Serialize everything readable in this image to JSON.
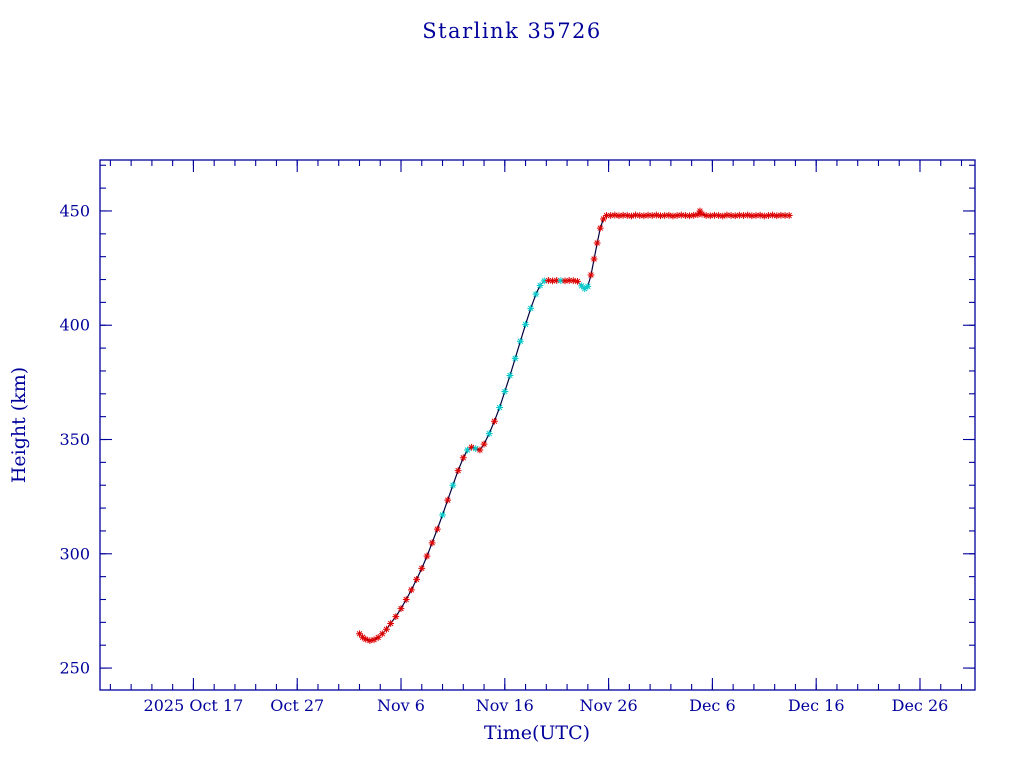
{
  "chart_data": {
    "type": "line",
    "title": "Starlink 35726",
    "xlabel": "Time(UTC)",
    "ylabel": "Height (km)",
    "x_unit": "days since 2025-10-17",
    "xlim": [
      -9,
      75.3
    ],
    "ylim": [
      240.4,
      472.3
    ],
    "xticks": [
      {
        "v": 0,
        "label": "2025 Oct 17"
      },
      {
        "v": 10,
        "label": "Oct 27"
      },
      {
        "v": 20,
        "label": "Nov 6"
      },
      {
        "v": 30,
        "label": "Nov 16"
      },
      {
        "v": 40,
        "label": "Nov 26"
      },
      {
        "v": 50,
        "label": "Dec 6"
      },
      {
        "v": 60,
        "label": "Dec 16"
      },
      {
        "v": 70,
        "label": "Dec 26"
      }
    ],
    "yticks": [
      250,
      300,
      350,
      400,
      450
    ],
    "xminor_step": 2,
    "yminor_step": 10,
    "grid": false,
    "legend": "none",
    "colors": {
      "axis": "#00009b",
      "text": "#00009b",
      "line": "#000040",
      "marker_red": "#dd0000",
      "marker_cyan": "#00c8c8"
    },
    "series": [
      {
        "name": "height",
        "marker": "asterisk",
        "points": [
          [
            16.0,
            265.0,
            "r"
          ],
          [
            16.3,
            263.5,
            "r"
          ],
          [
            16.6,
            262.6,
            "r"
          ],
          [
            17.0,
            262.0,
            "r"
          ],
          [
            17.4,
            262.4,
            "r"
          ],
          [
            17.8,
            263.4,
            "r"
          ],
          [
            18.2,
            265.0,
            "r"
          ],
          [
            18.6,
            267.0,
            "r"
          ],
          [
            19.0,
            269.5,
            "r"
          ],
          [
            19.5,
            272.5,
            "r"
          ],
          [
            20.0,
            276.0,
            "r"
          ],
          [
            20.5,
            280.0,
            "r"
          ],
          [
            21.0,
            284.2,
            "r"
          ],
          [
            21.5,
            288.8,
            "r"
          ],
          [
            22.0,
            293.6,
            "r"
          ],
          [
            22.5,
            299.0,
            "r"
          ],
          [
            23.0,
            304.8,
            "r"
          ],
          [
            23.5,
            310.8,
            "r"
          ],
          [
            24.0,
            317.0,
            "c"
          ],
          [
            24.5,
            323.5,
            "r"
          ],
          [
            25.0,
            330.0,
            "c"
          ],
          [
            25.5,
            336.4,
            "r"
          ],
          [
            26.0,
            342.0,
            "r"
          ],
          [
            26.4,
            345.4,
            "c"
          ],
          [
            26.8,
            346.6,
            "r"
          ],
          [
            27.2,
            346.0,
            "c"
          ],
          [
            27.6,
            345.4,
            "r"
          ],
          [
            28.0,
            348.0,
            "r"
          ],
          [
            28.5,
            352.6,
            "c"
          ],
          [
            29.0,
            358.0,
            "r"
          ],
          [
            29.5,
            364.0,
            "c"
          ],
          [
            30.0,
            371.0,
            "c"
          ],
          [
            30.5,
            378.0,
            "c"
          ],
          [
            31.0,
            385.5,
            "c"
          ],
          [
            31.5,
            393.0,
            "c"
          ],
          [
            32.0,
            400.4,
            "c"
          ],
          [
            32.5,
            407.4,
            "c"
          ],
          [
            33.0,
            413.6,
            "c"
          ],
          [
            33.4,
            417.4,
            "c"
          ],
          [
            33.8,
            419.4,
            "c"
          ],
          [
            34.2,
            419.6,
            "r"
          ],
          [
            34.6,
            419.4,
            "r"
          ],
          [
            35.0,
            419.6,
            "r"
          ],
          [
            35.4,
            419.5,
            "c"
          ],
          [
            35.8,
            419.4,
            "r"
          ],
          [
            36.2,
            419.6,
            "r"
          ],
          [
            36.6,
            419.5,
            "r"
          ],
          [
            37.0,
            419.2,
            "r"
          ],
          [
            37.4,
            417.2,
            "c"
          ],
          [
            37.7,
            416.0,
            "c"
          ],
          [
            38.0,
            417.0,
            "c"
          ],
          [
            38.3,
            422.0,
            "r"
          ],
          [
            38.6,
            429.0,
            "r"
          ],
          [
            38.9,
            436.0,
            "r"
          ],
          [
            39.2,
            442.5,
            "r"
          ],
          [
            39.5,
            446.5,
            "r"
          ],
          [
            39.8,
            448.0,
            "r"
          ],
          [
            40.2,
            448.0,
            "r"
          ],
          [
            40.6,
            448.2,
            "r"
          ],
          [
            41.0,
            447.9,
            "r"
          ],
          [
            41.4,
            448.1,
            "r"
          ],
          [
            41.8,
            448.0,
            "r"
          ],
          [
            42.2,
            447.8,
            "r"
          ],
          [
            42.6,
            448.2,
            "r"
          ],
          [
            43.0,
            448.0,
            "r"
          ],
          [
            43.4,
            447.9,
            "r"
          ],
          [
            43.8,
            448.1,
            "r"
          ],
          [
            44.2,
            448.0,
            "r"
          ],
          [
            44.6,
            448.2,
            "r"
          ],
          [
            45.0,
            447.9,
            "r"
          ],
          [
            45.4,
            448.0,
            "r"
          ],
          [
            45.8,
            448.1,
            "r"
          ],
          [
            46.2,
            447.8,
            "r"
          ],
          [
            46.6,
            448.0,
            "r"
          ],
          [
            47.0,
            448.2,
            "r"
          ],
          [
            47.4,
            448.0,
            "r"
          ],
          [
            47.8,
            447.9,
            "r"
          ],
          [
            48.2,
            448.1,
            "r"
          ],
          [
            48.6,
            448.4,
            "r"
          ],
          [
            48.8,
            450.0,
            "r"
          ],
          [
            49.0,
            448.6,
            "r"
          ],
          [
            49.4,
            448.0,
            "r"
          ],
          [
            49.8,
            447.9,
            "r"
          ],
          [
            50.2,
            448.1,
            "r"
          ],
          [
            50.6,
            448.0,
            "r"
          ],
          [
            51.0,
            447.8,
            "r"
          ],
          [
            51.4,
            448.2,
            "r"
          ],
          [
            51.8,
            448.0,
            "r"
          ],
          [
            52.2,
            447.9,
            "r"
          ],
          [
            52.6,
            448.1,
            "r"
          ],
          [
            53.0,
            448.0,
            "r"
          ],
          [
            53.4,
            448.2,
            "r"
          ],
          [
            53.8,
            447.9,
            "r"
          ],
          [
            54.2,
            448.0,
            "r"
          ],
          [
            54.6,
            448.1,
            "r"
          ],
          [
            55.0,
            447.8,
            "r"
          ],
          [
            55.4,
            448.0,
            "r"
          ],
          [
            55.8,
            448.2,
            "r"
          ],
          [
            56.2,
            447.9,
            "r"
          ],
          [
            56.6,
            448.1,
            "r"
          ],
          [
            57.0,
            448.0,
            "r"
          ],
          [
            57.4,
            448.0,
            "r"
          ]
        ]
      }
    ]
  }
}
